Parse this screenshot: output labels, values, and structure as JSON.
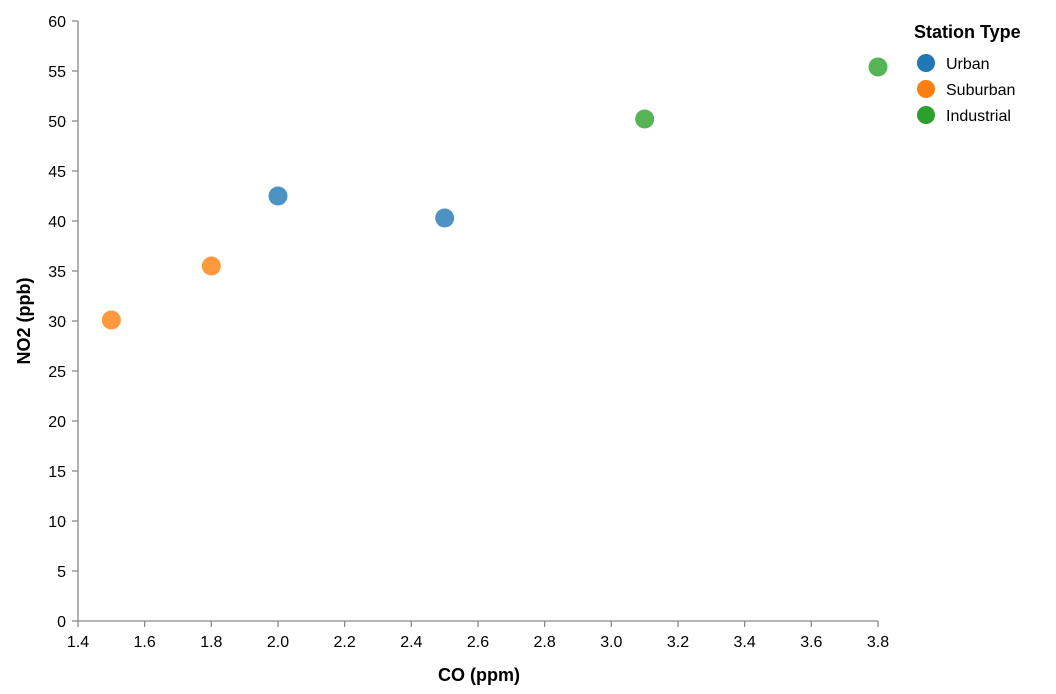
{
  "chart_data": {
    "type": "scatter",
    "xlabel": "CO (ppm)",
    "ylabel": "NO2 (ppb)",
    "xlim": [
      1.4,
      3.8
    ],
    "ylim": [
      0,
      60
    ],
    "x_ticks": [
      1.4,
      1.6,
      1.8,
      2.0,
      2.2,
      2.4,
      2.6,
      2.8,
      3.0,
      3.2,
      3.4,
      3.6,
      3.8
    ],
    "x_tick_labels": [
      "1.4",
      "1.6",
      "1.8",
      "2.0",
      "2.2",
      "2.4",
      "2.6",
      "2.8",
      "3.0",
      "3.2",
      "3.4",
      "3.6",
      "3.8"
    ],
    "y_ticks": [
      0,
      5,
      10,
      15,
      20,
      25,
      30,
      35,
      40,
      45,
      50,
      55,
      60
    ],
    "y_tick_labels": [
      "0",
      "5",
      "10",
      "15",
      "20",
      "25",
      "30",
      "35",
      "40",
      "45",
      "50",
      "55",
      "60"
    ],
    "grid": false,
    "legend": {
      "title": "Station Type",
      "placement": "top-right"
    },
    "series": [
      {
        "name": "Urban",
        "color": "#1f77b4",
        "points": [
          {
            "x": 2.0,
            "y": 42.5
          },
          {
            "x": 2.5,
            "y": 40.3
          }
        ]
      },
      {
        "name": "Suburban",
        "color": "#ff7f0e",
        "points": [
          {
            "x": 1.5,
            "y": 30.1
          },
          {
            "x": 1.8,
            "y": 35.5
          }
        ]
      },
      {
        "name": "Industrial",
        "color": "#2ca02c",
        "points": [
          {
            "x": 3.1,
            "y": 50.2
          },
          {
            "x": 3.8,
            "y": 55.4
          }
        ]
      }
    ]
  }
}
